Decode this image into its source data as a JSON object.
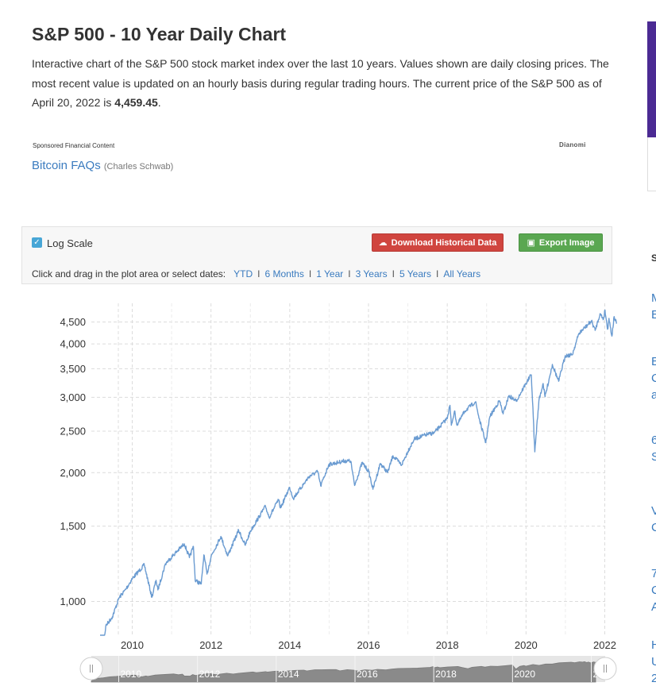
{
  "page": {
    "title": "S&P 500 - 10 Year Daily Chart",
    "intro_text": "Interactive chart of the S&P 500 stock market index over the last 10 years. Values shown are daily closing prices. The most recent value is updated on an hourly basis during regular trading hours. The current price of the S&P 500 as of April 20, 2022 is ",
    "current_price": "4,459.45",
    "intro_end": "."
  },
  "sponsored": {
    "label": "Sponsored Financial Content",
    "brand": "Dianomi",
    "link_text": "Bitcoin FAQs",
    "link_source": "(Charles Schwab)"
  },
  "right_column": {
    "fragments": [
      "S",
      "M",
      "E",
      "E",
      "C",
      "a",
      "6",
      "S",
      "V",
      "C",
      "7",
      "C",
      "A",
      "H",
      "U",
      "2"
    ]
  },
  "controls": {
    "log_scale_label": "Log Scale",
    "log_scale_checked": true,
    "download_label": "Download Historical Data",
    "export_label": "Export Image",
    "range_prompt": "Click and drag in the plot area or select dates:",
    "ranges": [
      "YTD",
      "6 Months",
      "1 Year",
      "3 Years",
      "5 Years",
      "All Years"
    ]
  },
  "colors": {
    "line": "#6a9bd1",
    "download_button": "#d0453f",
    "export_button": "#5aa751",
    "link": "#3a7bbf",
    "navigator_fill": "#8a8a8a"
  },
  "chart_data": {
    "type": "line",
    "title": "",
    "xlabel": "",
    "ylabel": "",
    "y_scale": "log",
    "ylim": [
      760,
      4900
    ],
    "xlim": [
      "2009-03-01",
      "2022-04-20"
    ],
    "y_ticks": [
      1000,
      1500,
      2000,
      2500,
      3000,
      3500,
      4000,
      4500
    ],
    "y_tick_labels": [
      "1,000",
      "1,500",
      "2,000",
      "2,500",
      "3,000",
      "3,500",
      "4,000",
      "4,500"
    ],
    "x_ticks": [
      "2010",
      "2012",
      "2014",
      "2016",
      "2018",
      "2020",
      "2022"
    ],
    "navigator_labels": [
      "2010",
      "2012",
      "2014",
      "2016",
      "2018",
      "2020",
      "2022"
    ],
    "grid": true,
    "legend": "none",
    "series": [
      {
        "x": [
          "2009-03-09",
          "2009-05-01",
          "2009-07-01",
          "2009-09-01",
          "2009-11-01",
          "2010-01-04",
          "2010-04-23",
          "2010-07-02",
          "2010-08-10",
          "2010-08-27",
          "2010-11-05",
          "2011-01-03",
          "2011-04-29",
          "2011-06-15",
          "2011-07-22",
          "2011-08-08",
          "2011-10-03",
          "2011-10-27",
          "2011-11-25",
          "2012-01-03",
          "2012-04-02",
          "2012-06-04",
          "2012-09-14",
          "2012-11-15",
          "2013-01-02",
          "2013-05-21",
          "2013-06-24",
          "2013-09-18",
          "2013-10-08",
          "2013-12-31",
          "2014-02-03",
          "2014-06-30",
          "2014-09-18",
          "2014-10-15",
          "2014-12-29",
          "2015-02-27",
          "2015-05-21",
          "2015-07-20",
          "2015-08-25",
          "2015-11-03",
          "2016-01-04",
          "2016-02-11",
          "2016-04-20",
          "2016-06-27",
          "2016-08-15",
          "2016-11-04",
          "2016-12-30",
          "2017-03-01",
          "2017-06-19",
          "2017-09-01",
          "2017-12-29",
          "2018-01-26",
          "2018-02-08",
          "2018-03-09",
          "2018-04-02",
          "2018-06-12",
          "2018-09-20",
          "2018-10-29",
          "2018-12-24",
          "2019-01-31",
          "2019-04-30",
          "2019-06-03",
          "2019-07-26",
          "2019-10-01",
          "2019-12-31",
          "2020-02-19",
          "2020-03-23",
          "2020-04-29",
          "2020-06-08",
          "2020-06-26",
          "2020-09-02",
          "2020-10-30",
          "2020-12-31",
          "2021-03-04",
          "2021-05-07",
          "2021-08-31",
          "2021-10-04",
          "2021-11-18",
          "2021-12-20",
          "2022-01-03",
          "2022-01-27",
          "2022-02-09",
          "2022-03-08",
          "2022-03-29",
          "2022-04-20"
        ],
        "values": [
          677,
          877,
          921,
          1020,
          1067,
          1133,
          1217,
          1023,
          1121,
          1064,
          1225,
          1272,
          1364,
          1266,
          1345,
          1119,
          1099,
          1285,
          1159,
          1277,
          1419,
          1278,
          1466,
          1353,
          1462,
          1669,
          1573,
          1726,
          1655,
          1848,
          1742,
          1960,
          2011,
          1862,
          2090,
          2105,
          2131,
          2128,
          1867,
          2109,
          2012,
          1829,
          2102,
          2001,
          2190,
          2085,
          2239,
          2396,
          2453,
          2477,
          2674,
          2873,
          2581,
          2787,
          2581,
          2786,
          2930,
          2641,
          2351,
          2704,
          2946,
          2744,
          3025,
          2940,
          3231,
          3386,
          2237,
          2940,
          3232,
          3009,
          3580,
          3270,
          3756,
          3768,
          4232,
          4523,
          4300,
          4705,
          4568,
          4797,
          4326,
          4587,
          4170,
          4632,
          4459
        ]
      }
    ]
  }
}
